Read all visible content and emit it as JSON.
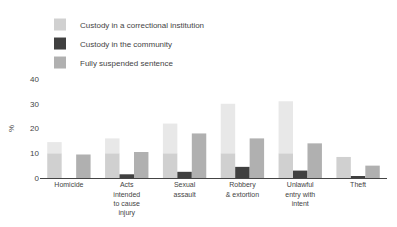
{
  "chart_data": {
    "type": "bar",
    "categories": [
      "Homicide",
      "Acts\nintended\nto cause\ninjury",
      "Sexual\nassault",
      "Robbery\n& extortion",
      "Unlawful\nentry with\nintent",
      "Theft"
    ],
    "series": [
      {
        "name": "Custody in a correctional institution",
        "color": "#d0d0d0",
        "values": [
          10,
          10,
          10,
          10,
          10,
          8.5
        ]
      },
      {
        "color": "#e8e8e8",
        "values": [
          4.5,
          6,
          12,
          20,
          21,
          0
        ],
        "stacked": true
      },
      {
        "name": "Custody in the community",
        "color": "#404040",
        "values": [
          0,
          1.5,
          2.5,
          4.5,
          3,
          0.8
        ]
      },
      {
        "name": "Fully suspended sentence",
        "color": "#b0b0b0",
        "values": [
          9.5,
          10.5,
          18,
          16,
          14,
          5
        ]
      }
    ],
    "ylabel": "%",
    "ylim": [
      0,
      40
    ],
    "yticks": [
      0,
      10,
      20,
      30,
      40
    ],
    "legend": "upper left",
    "grid": false
  }
}
